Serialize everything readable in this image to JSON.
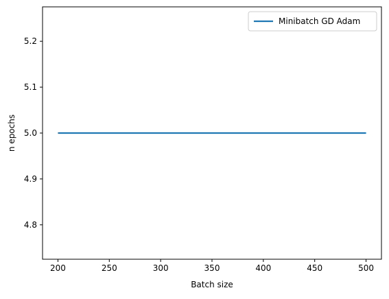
{
  "chart_data": {
    "type": "line",
    "title": "",
    "xlabel": "Batch size",
    "ylabel": "n epochs",
    "xlim": [
      185,
      515
    ],
    "ylim": [
      4.725,
      5.275
    ],
    "xticks": [
      200,
      250,
      300,
      350,
      400,
      450,
      500
    ],
    "xtick_labels": [
      "200",
      "250",
      "300",
      "350",
      "400",
      "450",
      "500"
    ],
    "yticks": [
      4.8,
      4.9,
      5.0,
      5.1,
      5.2
    ],
    "ytick_labels": [
      "4.8",
      "4.9",
      "5.0",
      "5.1",
      "5.2"
    ],
    "grid": false,
    "legend": {
      "placement": "top-right",
      "entries": [
        "Minibatch GD Adam"
      ]
    },
    "series": [
      {
        "name": "Minibatch GD Adam",
        "color": "#1f77b4",
        "x": [
          200,
          500
        ],
        "y": [
          5.0,
          5.0
        ]
      }
    ]
  }
}
